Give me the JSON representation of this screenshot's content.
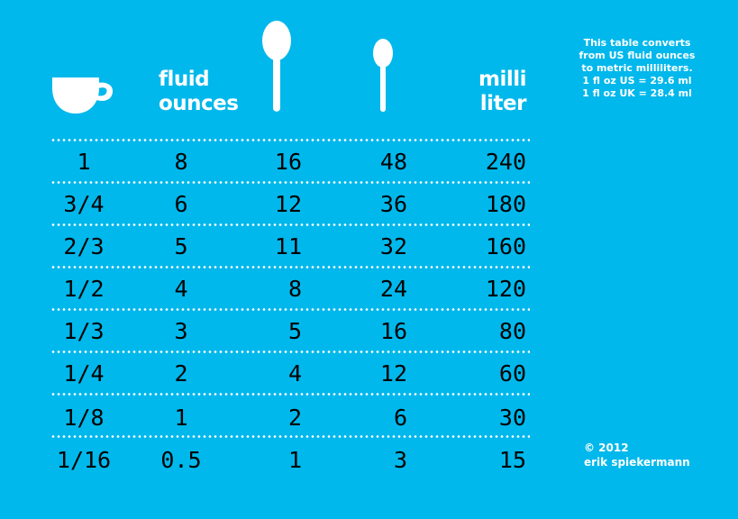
{
  "headers": {
    "fluid_ounces": [
      "fluid",
      "ounces"
    ],
    "milliliter": [
      "milli",
      "liter"
    ]
  },
  "icons": {
    "cup": "cup-icon",
    "tablespoon": "tablespoon-icon",
    "teaspoon": "teaspoon-icon"
  },
  "note": [
    "This table converts",
    "from US fluid ounces",
    "to metric milliliters.",
    "1 fl oz US = 29.6 ml",
    "1 fl oz UK = 28.4 ml"
  ],
  "credit": [
    "© 2012",
    "erik spiekermann"
  ],
  "rows": [
    {
      "cup": "1",
      "fluid_ounces": "8",
      "tablespoons": "16",
      "teaspoons": "48",
      "milliliters": "240"
    },
    {
      "cup": "3/4",
      "fluid_ounces": "6",
      "tablespoons": "12",
      "teaspoons": "36",
      "milliliters": "180"
    },
    {
      "cup": "2/3",
      "fluid_ounces": "5",
      "tablespoons": "11",
      "teaspoons": "32",
      "milliliters": "160"
    },
    {
      "cup": "1/2",
      "fluid_ounces": "4",
      "tablespoons": "8",
      "teaspoons": "24",
      "milliliters": "120"
    },
    {
      "cup": "1/3",
      "fluid_ounces": "3",
      "tablespoons": "5",
      "teaspoons": "16",
      "milliliters": "80"
    },
    {
      "cup": "1/4",
      "fluid_ounces": "2",
      "tablespoons": "4",
      "teaspoons": "12",
      "milliliters": "60"
    },
    {
      "cup": "1/8",
      "fluid_ounces": "1",
      "tablespoons": "2",
      "teaspoons": "6",
      "milliliters": "30"
    },
    {
      "cup": "1/16",
      "fluid_ounces": "0.5",
      "tablespoons": "1",
      "teaspoons": "3",
      "milliliters": "15"
    }
  ],
  "colors": {
    "background": "#00b8ec",
    "foreground": "#ffffff",
    "numbers": "#000000"
  }
}
